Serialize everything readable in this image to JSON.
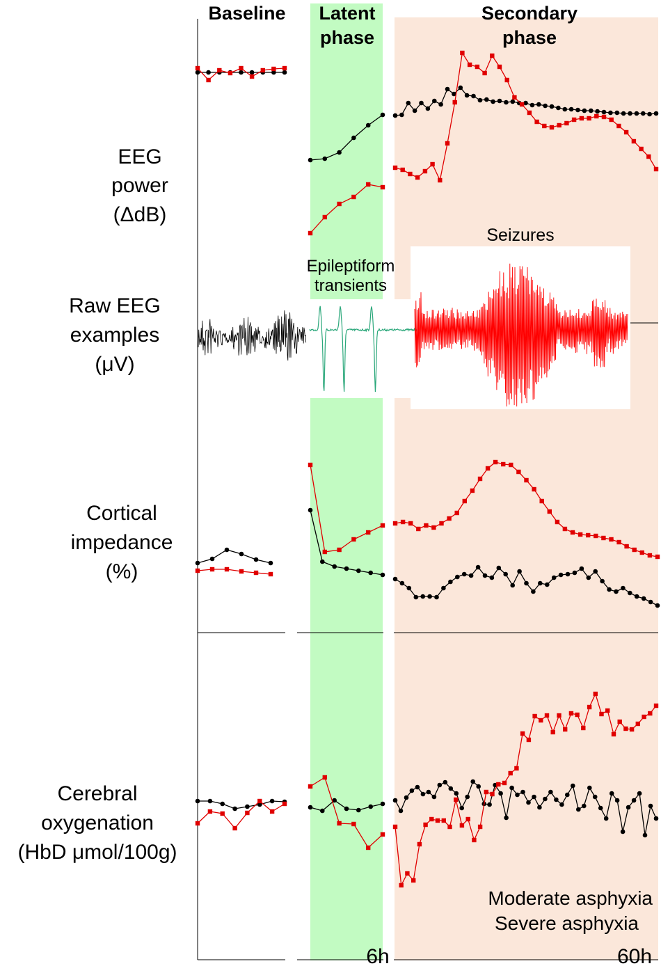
{
  "phases": {
    "baseline": "Baseline",
    "latent_line1": "Latent",
    "latent_line2": "phase",
    "secondary_line1": "Secondary",
    "secondary_line2": "phase"
  },
  "row_labels": {
    "eeg_power": [
      "EEG",
      "power",
      "(ΔdB)"
    ],
    "raw_eeg": [
      "Raw EEG",
      "examples",
      "(μV)"
    ],
    "impedance": [
      "Cortical",
      "impedance",
      "(%)"
    ],
    "oxygenation": [
      "Cerebral",
      "oxygenation",
      "(HbD μmol/100g)"
    ]
  },
  "annotations": {
    "seizures": "Seizures",
    "epileptiform_line1": "Epileptiform",
    "epileptiform_line2": "transients"
  },
  "legend": {
    "moderate": "Moderate asphyxia",
    "severe": "Severe asphyxia"
  },
  "x_ticks": [
    "6h",
    "60h"
  ],
  "colors": {
    "moderate": "#000000",
    "severe": "#e00000",
    "latent_bg": "#c2fbc2",
    "secondary_bg": "#fbe7da",
    "baseline_title": "#000000",
    "latent_title": "#1a7a1a",
    "secondary_title": "#a80000",
    "transients": "#2aa77a",
    "seizure_trace": "#ff0000"
  },
  "chart_data": [
    {
      "type": "line",
      "panel": "EEG power",
      "series": [
        {
          "name": "Moderate asphyxia",
          "segment": "baseline",
          "values": [
            104,
            104,
            104,
            104,
            104,
            104,
            104,
            104,
            104
          ]
        },
        {
          "name": "Severe asphyxia",
          "segment": "baseline",
          "values": [
            98,
            115,
            101,
            105,
            98,
            110,
            101,
            99,
            98
          ]
        },
        {
          "name": "Moderate asphyxia",
          "segment": "latent",
          "values": [
            230,
            228,
            219,
            198,
            180,
            165
          ]
        },
        {
          "name": "Severe asphyxia",
          "segment": "latent",
          "values": [
            335,
            312,
            293,
            283,
            265,
            269
          ]
        },
        {
          "name": "Moderate asphyxia",
          "segment": "secondary",
          "values": [
            166,
            165,
            148,
            159,
            148,
            156,
            145,
            150,
            128,
            135,
            126,
            137,
            138,
            144,
            143,
            146,
            145,
            147,
            146,
            148,
            148,
            151,
            150,
            152,
            153,
            155,
            157,
            157,
            158,
            159,
            159,
            160,
            161,
            162,
            162,
            163,
            163,
            163,
            163,
            164,
            163
          ]
        },
        {
          "name": "Severe asphyxia",
          "segment": "secondary",
          "values": [
            241,
            244,
            250,
            255,
            246,
            236,
            259,
            206,
            147,
            76,
            93,
            96,
            105,
            80,
            96,
            115,
            140,
            150,
            162,
            175,
            181,
            183,
            180,
            177,
            172,
            170,
            170,
            167,
            168,
            172,
            181,
            190,
            203,
            214,
            225,
            243
          ]
        }
      ]
    },
    {
      "type": "line",
      "panel": "Cortical impedance",
      "series": [
        {
          "name": "Moderate asphyxia",
          "segment": "baseline",
          "values": [
            809,
            803,
            790,
            796,
            804,
            809
          ]
        },
        {
          "name": "Severe asphyxia",
          "segment": "baseline",
          "values": [
            820,
            818,
            818,
            821,
            823,
            825
          ]
        },
        {
          "name": "Moderate asphyxia",
          "segment": "latent",
          "values": [
            733,
            807,
            814,
            817,
            820,
            823,
            826
          ]
        },
        {
          "name": "Severe asphyxia",
          "segment": "latent",
          "values": [
            668,
            793,
            790,
            775,
            765,
            755
          ]
        },
        {
          "name": "Moderate asphyxia",
          "segment": "secondary",
          "values": [
            832,
            838,
            845,
            858,
            857,
            857,
            858,
            845,
            836,
            829,
            825,
            827,
            815,
            827,
            830,
            816,
            825,
            841,
            821,
            838,
            850,
            838,
            840,
            830,
            826,
            825,
            823,
            817,
            830,
            821,
            835,
            847,
            850,
            845,
            852,
            857,
            860,
            865,
            870
          ]
        },
        {
          "name": "Severe asphyxia",
          "segment": "secondary",
          "values": [
            752,
            750,
            752,
            760,
            755,
            758,
            752,
            745,
            737,
            720,
            705,
            688,
            673,
            664,
            667,
            668,
            678,
            690,
            703,
            720,
            735,
            750,
            760,
            765,
            768,
            769,
            770,
            773,
            775,
            779,
            785,
            790,
            794,
            798,
            800
          ]
        }
      ]
    },
    {
      "type": "line",
      "panel": "Cerebral oxygenation",
      "series": [
        {
          "name": "Moderate asphyxia",
          "segment": "baseline",
          "values": [
            1151,
            1151,
            1155,
            1162,
            1159,
            1156,
            1151,
            1152
          ]
        },
        {
          "name": "Severe asphyxia",
          "segment": "baseline",
          "values": [
            1183,
            1166,
            1169,
            1190,
            1168,
            1151,
            1166,
            1155
          ]
        },
        {
          "name": "Moderate asphyxia",
          "segment": "latent",
          "values": [
            1160,
            1165,
            1150,
            1162,
            1164,
            1159,
            1155
          ]
        },
        {
          "name": "Severe asphyxia",
          "segment": "latent",
          "values": [
            1130,
            1117,
            1183,
            1184,
            1218,
            1199
          ]
        },
        {
          "name": "Moderate asphyxia",
          "segment": "secondary",
          "values": [
            1150,
            1165,
            1146,
            1136,
            1131,
            1141,
            1138,
            1145,
            1128,
            1124,
            1133,
            1140,
            1161,
            1145,
            1123,
            1130,
            1155,
            1156,
            1128,
            1140,
            1175,
            1132,
            1142,
            1138,
            1153,
            1145,
            1160,
            1148,
            1138,
            1149,
            1156,
            1142,
            1129,
            1163,
            1158,
            1132,
            1145,
            1161,
            1176,
            1140,
            1150,
            1195,
            1160,
            1150,
            1140,
            1200,
            1158,
            1176
          ]
        },
        {
          "name": "Severe asphyxia",
          "segment": "secondary",
          "values": [
            1188,
            1272,
            1255,
            1265,
            1213,
            1185,
            1177,
            1179,
            1179,
            1188,
            1149,
            1186,
            1177,
            1207,
            1188,
            1138,
            1141,
            1127,
            1125,
            1111,
            1104,
            1054,
            1063,
            1029,
            1035,
            1028,
            1052,
            1028,
            1048,
            1025,
            1027,
            1046,
            1016,
            997,
            1026,
            1021,
            1055,
            1037,
            1047,
            1048,
            1040,
            1030,
            1025,
            1014
          ]
        }
      ]
    }
  ]
}
